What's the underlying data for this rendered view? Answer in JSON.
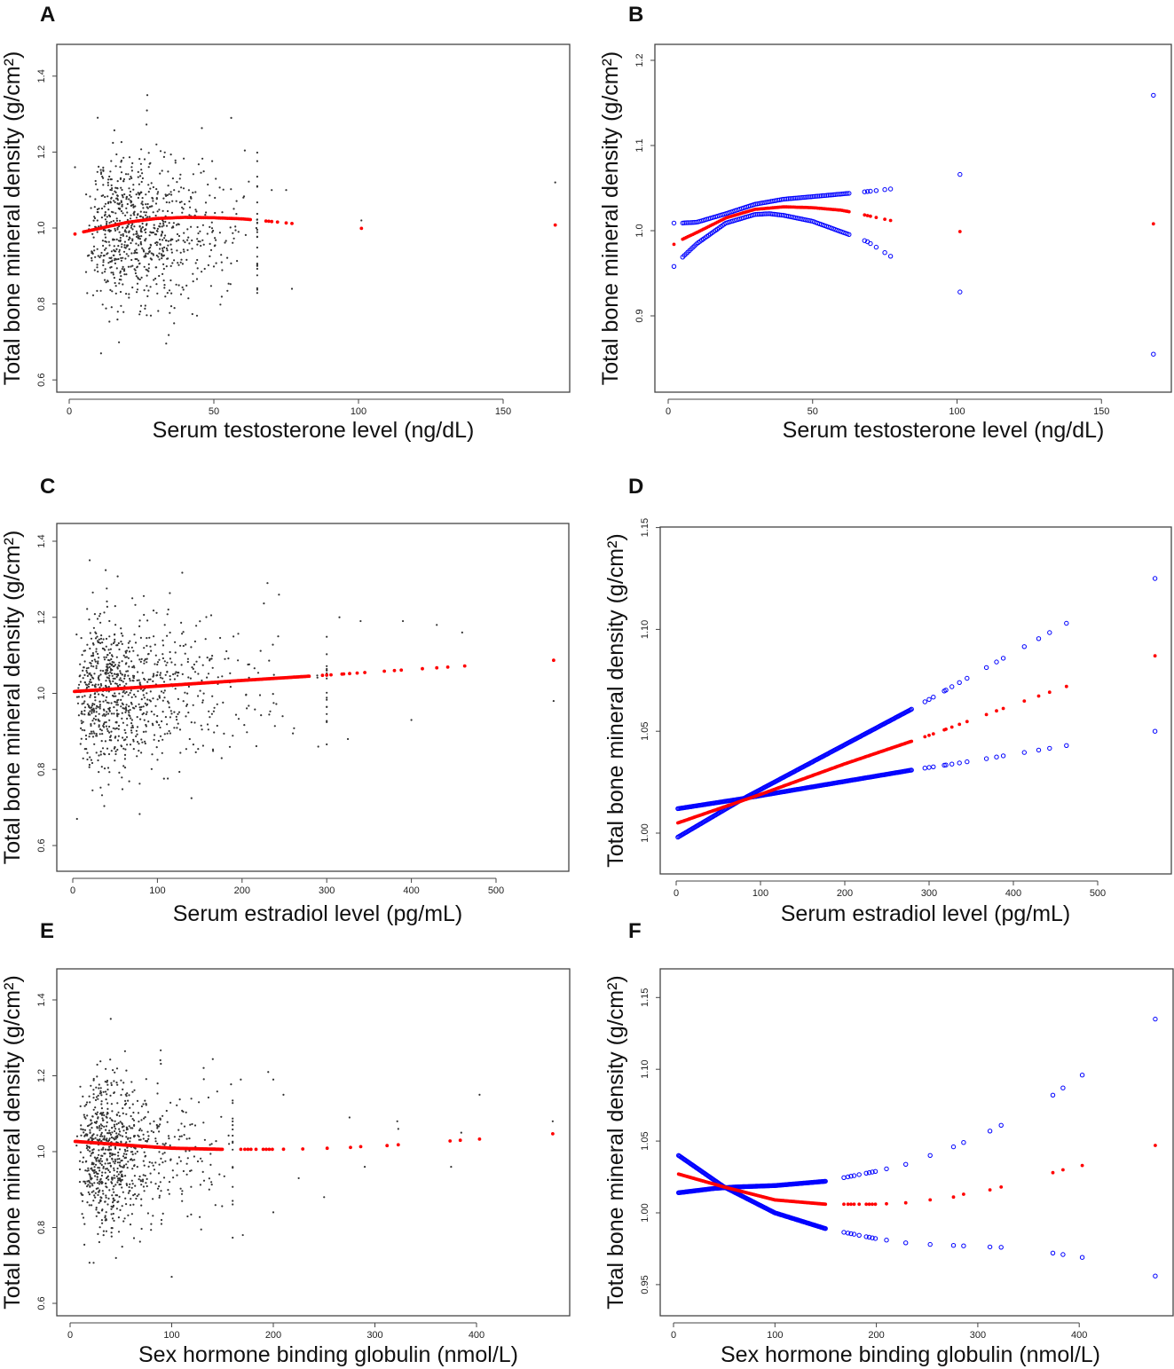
{
  "colors": {
    "fit": "#ff0000",
    "ci": "#0000ff",
    "scatter": "#333333",
    "frame": "#444444"
  },
  "chart_data": [
    {
      "panel": "A",
      "type": "scatter",
      "xlabel": "Serum testosterone level (ng/dL)",
      "ylabel": "Total bone mineral density (g/cm²)",
      "xticks": [
        "0",
        "50",
        "100",
        "150"
      ],
      "xtick_values": [
        0,
        50,
        100,
        150
      ],
      "yticks": [
        "0.6",
        "0.8",
        "1.0",
        "1.2",
        "1.4"
      ],
      "ytick_values": [
        0.6,
        0.8,
        1.0,
        1.2,
        1.4
      ],
      "cloud": {
        "n": 850,
        "seed": 11,
        "x_median": 24,
        "x_log_sd": 0.5,
        "x_min": 2,
        "x_max": 65,
        "y_mean": 1.0,
        "y_sd": 0.1
      },
      "scatter_outliers": [
        [
          2,
          1.16
        ],
        [
          70,
          1.1
        ],
        [
          75,
          1.1
        ],
        [
          77,
          0.84
        ],
        [
          101,
          1.02
        ],
        [
          101,
          1.0
        ],
        [
          168,
          1.12
        ],
        [
          27,
          1.35
        ],
        [
          11,
          0.67
        ],
        [
          56,
          1.29
        ]
      ],
      "fit": [
        [
          2,
          0.984
        ],
        [
          5,
          0.99
        ],
        [
          10,
          0.998
        ],
        [
          20,
          1.015
        ],
        [
          30,
          1.025
        ],
        [
          40,
          1.028
        ],
        [
          50,
          1.027
        ],
        [
          60,
          1.024
        ],
        [
          63,
          1.022
        ],
        [
          70,
          1.017
        ],
        [
          77,
          1.012
        ],
        [
          101,
          0.999
        ],
        [
          168,
          1.008
        ]
      ],
      "fit_dense": [
        5,
        63,
        0.6
      ],
      "fit_sparse_x": [
        2,
        68,
        69,
        70,
        72,
        75,
        77,
        101,
        168
      ]
    },
    {
      "panel": "B",
      "type": "line",
      "xlabel": "Serum testosterone level (ng/dL)",
      "ylabel": "Total bone mineral density (g/cm²)",
      "xticks": [
        "0",
        "50",
        "100",
        "150"
      ],
      "xtick_values": [
        0,
        50,
        100,
        150
      ],
      "yticks": [
        "0.9",
        "1.0",
        "1.1",
        "1.2"
      ],
      "ytick_values": [
        0.9,
        1.0,
        1.1,
        1.2
      ],
      "fit": [
        [
          2,
          0.984
        ],
        [
          5,
          0.99
        ],
        [
          10,
          0.998
        ],
        [
          20,
          1.015
        ],
        [
          30,
          1.025
        ],
        [
          40,
          1.028
        ],
        [
          50,
          1.027
        ],
        [
          60,
          1.024
        ],
        [
          63,
          1.022
        ],
        [
          70,
          1.017
        ],
        [
          77,
          1.012
        ],
        [
          101,
          0.999
        ],
        [
          168,
          1.008
        ]
      ],
      "ci_upper": [
        [
          2,
          1.009
        ],
        [
          5,
          1.009
        ],
        [
          10,
          1.01
        ],
        [
          20,
          1.02
        ],
        [
          30,
          1.031
        ],
        [
          40,
          1.037
        ],
        [
          50,
          1.04
        ],
        [
          63,
          1.044
        ],
        [
          69,
          1.046
        ],
        [
          77,
          1.049
        ],
        [
          101,
          1.066
        ],
        [
          168,
          1.159
        ]
      ],
      "ci_lower": [
        [
          2,
          0.958
        ],
        [
          5,
          0.969
        ],
        [
          10,
          0.985
        ],
        [
          20,
          1.009
        ],
        [
          30,
          1.019
        ],
        [
          35,
          1.02
        ],
        [
          40,
          1.018
        ],
        [
          50,
          1.011
        ],
        [
          63,
          0.995
        ],
        [
          69,
          0.987
        ],
        [
          77,
          0.97
        ],
        [
          101,
          0.928
        ],
        [
          168,
          0.855
        ]
      ],
      "fit_dense": [
        5,
        63,
        0.6
      ],
      "fit_sparse_x": [
        2,
        68,
        69,
        70,
        72,
        75,
        77,
        101,
        168
      ]
    },
    {
      "panel": "C",
      "type": "scatter",
      "xlabel": "Serum estradiol level (pg/mL)",
      "ylabel": "Total bone mineral density (g/cm²)",
      "xticks": [
        "0",
        "100",
        "200",
        "300",
        "400",
        "500"
      ],
      "xtick_values": [
        0,
        100,
        200,
        300,
        400,
        500
      ],
      "yticks": [
        "0.6",
        "0.8",
        "1.0",
        "1.2",
        "1.4"
      ],
      "ytick_values": [
        0.6,
        0.8,
        1.0,
        1.2,
        1.4
      ],
      "cloud": {
        "n": 900,
        "seed": 23,
        "x_median": 55,
        "x_log_sd": 0.8,
        "x_min": 2,
        "x_max": 300,
        "y_mean": 1.0,
        "y_sd": 0.1
      },
      "scatter_outliers": [
        [
          315,
          1.2
        ],
        [
          340,
          1.19
        ],
        [
          390,
          1.19
        ],
        [
          430,
          1.18
        ],
        [
          460,
          1.16
        ],
        [
          400,
          0.93
        ],
        [
          290,
          0.86
        ],
        [
          325,
          0.88
        ],
        [
          568,
          0.98
        ],
        [
          20,
          1.35
        ],
        [
          5,
          0.67
        ],
        [
          230,
          1.29
        ]
      ],
      "fit": [
        [
          2,
          1.005
        ],
        [
          100,
          1.019
        ],
        [
          200,
          1.034
        ],
        [
          300,
          1.048
        ],
        [
          400,
          1.063
        ],
        [
          463,
          1.072
        ],
        [
          568,
          1.087
        ]
      ],
      "fit_dense": [
        2,
        280,
        1.2
      ],
      "fit_sparse_x": [
        295,
        300,
        305,
        318,
        320,
        327,
        336,
        345,
        368,
        380,
        388,
        413,
        430,
        443,
        463,
        568
      ]
    },
    {
      "panel": "D",
      "type": "line",
      "xlabel": "Serum estradiol level (pg/mL)",
      "ylabel": "Total bone mineral density (g/cm²)",
      "xticks": [
        "0",
        "100",
        "200",
        "300",
        "400",
        "500"
      ],
      "xtick_values": [
        0,
        100,
        200,
        300,
        400,
        500
      ],
      "yticks": [
        "1.00",
        "1.05",
        "1.10",
        "1.15"
      ],
      "ytick_values": [
        1.0,
        1.05,
        1.1,
        1.15
      ],
      "fit": [
        [
          2,
          1.005
        ],
        [
          100,
          1.019
        ],
        [
          200,
          1.034
        ],
        [
          300,
          1.048
        ],
        [
          400,
          1.063
        ],
        [
          463,
          1.072
        ],
        [
          568,
          1.087
        ]
      ],
      "ci_upper": [
        [
          2,
          0.998
        ],
        [
          80,
          1.017
        ],
        [
          280,
          1.061
        ],
        [
          345,
          1.076
        ],
        [
          463,
          1.103
        ],
        [
          568,
          1.125
        ]
      ],
      "ci_lower": [
        [
          2,
          1.012
        ],
        [
          80,
          1.017
        ],
        [
          280,
          1.031
        ],
        [
          345,
          1.035
        ],
        [
          463,
          1.043
        ],
        [
          568,
          1.05
        ]
      ],
      "fit_dense": [
        2,
        280,
        1.2
      ],
      "fit_sparse_x": [
        295,
        300,
        305,
        318,
        320,
        327,
        336,
        345,
        368,
        380,
        388,
        413,
        430,
        443,
        463,
        568
      ]
    },
    {
      "panel": "E",
      "type": "scatter",
      "xlabel": "Sex hormone binding globulin (nmol/L)",
      "ylabel": "Total bone mineral density (g/cm²)",
      "xticks": [
        "0",
        "100",
        "200",
        "300",
        "400"
      ],
      "xtick_values": [
        0,
        100,
        200,
        300,
        400
      ],
      "yticks": [
        "0.6",
        "0.8",
        "1.0",
        "1.2",
        "1.4"
      ],
      "ytick_values": [
        0.6,
        0.8,
        1.0,
        1.2,
        1.4
      ],
      "cloud": {
        "n": 850,
        "seed": 37,
        "x_median": 45,
        "x_log_sd": 0.6,
        "x_min": 5,
        "x_max": 160,
        "y_mean": 1.0,
        "y_sd": 0.1
      },
      "scatter_outliers": [
        [
          168,
          1.19
        ],
        [
          195,
          1.21
        ],
        [
          200,
          1.19
        ],
        [
          210,
          1.15
        ],
        [
          225,
          0.93
        ],
        [
          250,
          0.88
        ],
        [
          275,
          1.09
        ],
        [
          290,
          0.96
        ],
        [
          322,
          1.08
        ],
        [
          323,
          1.06
        ],
        [
          375,
          0.96
        ],
        [
          385,
          1.05
        ],
        [
          403,
          1.15
        ],
        [
          475,
          1.08
        ],
        [
          170,
          0.78
        ],
        [
          200,
          0.84
        ],
        [
          40,
          1.35
        ],
        [
          100,
          0.67
        ]
      ],
      "fit": [
        [
          5,
          1.027
        ],
        [
          50,
          1.018
        ],
        [
          100,
          1.009
        ],
        [
          150,
          1.006
        ],
        [
          200,
          1.006
        ],
        [
          230,
          1.007
        ],
        [
          253,
          1.009
        ],
        [
          276,
          1.011
        ],
        [
          286,
          1.013
        ],
        [
          312,
          1.016
        ],
        [
          323,
          1.018
        ],
        [
          374,
          1.028
        ],
        [
          384,
          1.03
        ],
        [
          403,
          1.033
        ],
        [
          475,
          1.047
        ]
      ],
      "fit_dense": [
        5,
        150,
        0.8
      ],
      "fit_sparse_x": [
        168,
        172,
        175,
        178,
        183,
        190,
        193,
        196,
        199,
        210,
        229,
        253,
        276,
        286,
        312,
        323,
        374,
        384,
        403,
        475
      ]
    },
    {
      "panel": "F",
      "type": "line",
      "xlabel": "Sex hormone binding globulin (nmol/L)",
      "ylabel": "Total bone mineral density (g/cm²)",
      "xticks": [
        "0",
        "100",
        "200",
        "300",
        "400"
      ],
      "xtick_values": [
        0,
        100,
        200,
        300,
        400
      ],
      "yticks": [
        "0.95",
        "1.00",
        "1.05",
        "1.10",
        "1.15"
      ],
      "ytick_values": [
        0.95,
        1.0,
        1.05,
        1.1,
        1.15
      ],
      "fit": [
        [
          5,
          1.027
        ],
        [
          50,
          1.018
        ],
        [
          100,
          1.009
        ],
        [
          150,
          1.006
        ],
        [
          200,
          1.006
        ],
        [
          230,
          1.007
        ],
        [
          253,
          1.009
        ],
        [
          276,
          1.011
        ],
        [
          286,
          1.013
        ],
        [
          312,
          1.016
        ],
        [
          323,
          1.018
        ],
        [
          374,
          1.028
        ],
        [
          384,
          1.03
        ],
        [
          403,
          1.033
        ],
        [
          475,
          1.047
        ]
      ],
      "ci_upper": [
        [
          5,
          1.014
        ],
        [
          40,
          1.017
        ],
        [
          60,
          1.018
        ],
        [
          100,
          1.019
        ],
        [
          150,
          1.022
        ],
        [
          200,
          1.029
        ],
        [
          230,
          1.034
        ],
        [
          253,
          1.04
        ],
        [
          276,
          1.046
        ],
        [
          286,
          1.049
        ],
        [
          312,
          1.057
        ],
        [
          323,
          1.061
        ],
        [
          374,
          1.082
        ],
        [
          384,
          1.087
        ],
        [
          403,
          1.096
        ],
        [
          475,
          1.135
        ]
      ],
      "ci_lower": [
        [
          5,
          1.04
        ],
        [
          50,
          1.018
        ],
        [
          100,
          1.0
        ],
        [
          150,
          0.989
        ],
        [
          200,
          0.982
        ],
        [
          230,
          0.979
        ],
        [
          253,
          0.978
        ],
        [
          286,
          0.977
        ],
        [
          323,
          0.976
        ],
        [
          374,
          0.972
        ],
        [
          403,
          0.969
        ],
        [
          475,
          0.956
        ]
      ],
      "fit_dense": [
        5,
        150,
        0.8
      ],
      "fit_sparse_x": [
        168,
        172,
        175,
        178,
        183,
        190,
        193,
        196,
        199,
        210,
        229,
        253,
        276,
        286,
        312,
        323,
        374,
        384,
        403,
        475
      ]
    }
  ]
}
